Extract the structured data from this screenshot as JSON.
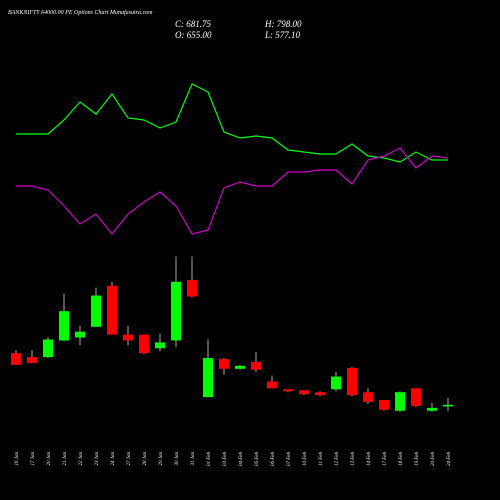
{
  "chart_data": {
    "type": "candlestick",
    "title": "BANKNIFTY 64000.00 PE Options Chart Munafasutra.com",
    "ohlc_labels": {
      "close": "C: 681.75",
      "high": "H: 798.00",
      "open": "O: 655.00",
      "low": "L: 577.10"
    },
    "categories": [
      "16 Jan",
      "17 Jan",
      "20 Jan",
      "21 Jan",
      "22 Jan",
      "23 Jan",
      "24 Jan",
      "27 Jan",
      "28 Jan",
      "29 Jan",
      "30 Jan",
      "31 Jan",
      "01 Feb",
      "03 Feb",
      "04 Feb",
      "05 Feb",
      "06 Feb",
      "07 Feb",
      "10 Feb",
      "11 Feb",
      "12 Feb",
      "13 Feb",
      "14 Feb",
      "17 Feb",
      "18 Feb",
      "19 Feb",
      "20 Feb",
      "24 Feb"
    ],
    "open": [
      1528,
      1464,
      1464,
      1736,
      1784,
      1960,
      2632,
      1832,
      1832,
      1608,
      1736,
      2728,
      808,
      1432,
      1272,
      1384,
      1064,
      936,
      920,
      888,
      936,
      1288,
      888,
      760,
      584,
      952,
      584,
      655
    ],
    "high": [
      1576,
      1576,
      1784,
      2504,
      1976,
      2600,
      2696,
      1976,
      1832,
      1848,
      3112,
      3112,
      1752,
      1448,
      1336,
      1544,
      1160,
      936,
      920,
      904,
      1224,
      1304,
      952,
      760,
      904,
      952,
      712,
      798
    ],
    "low": [
      1336,
      1368,
      1448,
      1720,
      1656,
      1960,
      1832,
      1656,
      1512,
      1560,
      1624,
      2440,
      808,
      1176,
      1256,
      1224,
      952,
      888,
      840,
      824,
      904,
      824,
      696,
      584,
      568,
      648,
      568,
      577.1
    ],
    "close": [
      1336,
      1368,
      1752,
      2216,
      1880,
      2472,
      1832,
      1736,
      1528,
      1704,
      2696,
      2456,
      1448,
      1272,
      1320,
      1256,
      952,
      904,
      856,
      840,
      1144,
      840,
      728,
      600,
      888,
      664,
      632,
      681.75
    ],
    "ylim": [
      400,
      3300
    ],
    "up_color": "#00ff00",
    "down_color": "#ff0000",
    "lines": [
      {
        "color": "#00ff00",
        "values": [
          58,
          58,
          58,
          65,
          74,
          68,
          78,
          66,
          65,
          61,
          64,
          83,
          79,
          59,
          56,
          57,
          56,
          50,
          49,
          48,
          48,
          53,
          47,
          46,
          44,
          49,
          45,
          45
        ]
      },
      {
        "color": "#cc00cc",
        "values": [
          32,
          32,
          30,
          22,
          13,
          18,
          8,
          18,
          24,
          29,
          22,
          8,
          10,
          31,
          34,
          32,
          32,
          39,
          39,
          40,
          40,
          33,
          45,
          47,
          51,
          41,
          47,
          46
        ]
      }
    ],
    "lines_ylim": [
      0,
      100
    ]
  }
}
